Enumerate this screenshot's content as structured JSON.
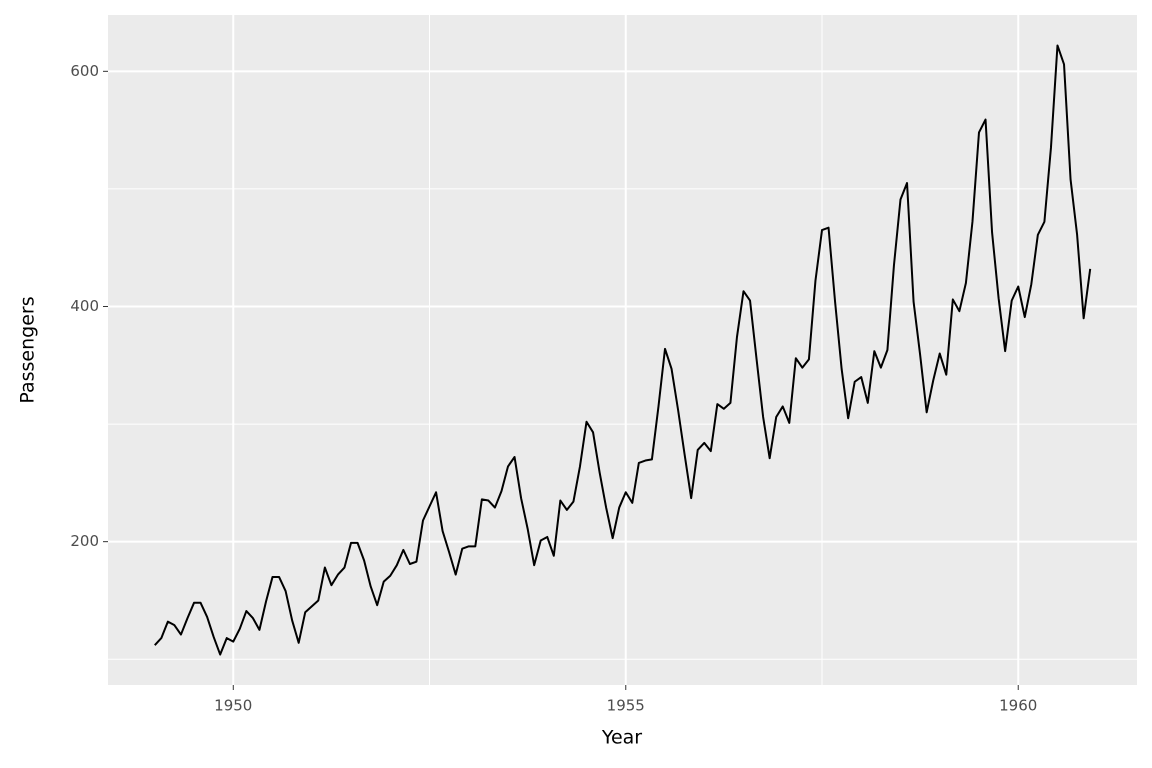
{
  "chart_data": {
    "type": "line",
    "x_label": "Year",
    "y_label": "Passengers",
    "x": [
      1949,
      1949.0833,
      1949.1667,
      1949.25,
      1949.3333,
      1949.4167,
      1949.5,
      1949.5833,
      1949.6667,
      1949.75,
      1949.8333,
      1949.9167,
      1950,
      1950.0833,
      1950.1667,
      1950.25,
      1950.3333,
      1950.4167,
      1950.5,
      1950.5833,
      1950.6667,
      1950.75,
      1950.8333,
      1950.9167,
      1951,
      1951.0833,
      1951.1667,
      1951.25,
      1951.3333,
      1951.4167,
      1951.5,
      1951.5833,
      1951.6667,
      1951.75,
      1951.8333,
      1951.9167,
      1952,
      1952.0833,
      1952.1667,
      1952.25,
      1952.3333,
      1952.4167,
      1952.5,
      1952.5833,
      1952.6667,
      1952.75,
      1952.8333,
      1952.9167,
      1953,
      1953.0833,
      1953.1667,
      1953.25,
      1953.3333,
      1953.4167,
      1953.5,
      1953.5833,
      1953.6667,
      1953.75,
      1953.8333,
      1953.9167,
      1954,
      1954.0833,
      1954.1667,
      1954.25,
      1954.3333,
      1954.4167,
      1954.5,
      1954.5833,
      1954.6667,
      1954.75,
      1954.8333,
      1954.9167,
      1955,
      1955.0833,
      1955.1667,
      1955.25,
      1955.3333,
      1955.4167,
      1955.5,
      1955.5833,
      1955.6667,
      1955.75,
      1955.8333,
      1955.9167,
      1956,
      1956.0833,
      1956.1667,
      1956.25,
      1956.3333,
      1956.4167,
      1956.5,
      1956.5833,
      1956.6667,
      1956.75,
      1956.8333,
      1956.9167,
      1957,
      1957.0833,
      1957.1667,
      1957.25,
      1957.3333,
      1957.4167,
      1957.5,
      1957.5833,
      1957.6667,
      1957.75,
      1957.8333,
      1957.9167,
      1958,
      1958.0833,
      1958.1667,
      1958.25,
      1958.3333,
      1958.4167,
      1958.5,
      1958.5833,
      1958.6667,
      1958.75,
      1958.8333,
      1958.9167,
      1959,
      1959.0833,
      1959.1667,
      1959.25,
      1959.3333,
      1959.4167,
      1959.5,
      1959.5833,
      1959.6667,
      1959.75,
      1959.8333,
      1959.9167,
      1960,
      1960.0833,
      1960.1667,
      1960.25,
      1960.3333,
      1960.4167,
      1960.5,
      1960.5833,
      1960.6667,
      1960.75,
      1960.8333,
      1960.9167
    ],
    "values": [
      112,
      118,
      132,
      129,
      121,
      135,
      148,
      148,
      136,
      119,
      104,
      118,
      115,
      126,
      141,
      135,
      125,
      149,
      170,
      170,
      158,
      133,
      114,
      140,
      145,
      150,
      178,
      163,
      172,
      178,
      199,
      199,
      184,
      162,
      146,
      166,
      171,
      180,
      193,
      181,
      183,
      218,
      230,
      242,
      209,
      191,
      172,
      194,
      196,
      196,
      236,
      235,
      229,
      243,
      264,
      272,
      237,
      211,
      180,
      201,
      204,
      188,
      235,
      227,
      234,
      264,
      302,
      293,
      259,
      229,
      203,
      229,
      242,
      233,
      267,
      269,
      270,
      315,
      364,
      347,
      312,
      274,
      237,
      278,
      284,
      277,
      317,
      313,
      318,
      374,
      413,
      405,
      355,
      306,
      271,
      306,
      315,
      301,
      356,
      348,
      355,
      422,
      465,
      467,
      404,
      347,
      305,
      336,
      340,
      318,
      362,
      348,
      363,
      435,
      491,
      505,
      404,
      359,
      310,
      337,
      360,
      342,
      406,
      396,
      420,
      472,
      548,
      559,
      463,
      407,
      362,
      405,
      417,
      391,
      419,
      461,
      472,
      535,
      622,
      606,
      508,
      461,
      390,
      432
    ],
    "color": "#000000",
    "xlim": [
      1948.404,
      1961.513
    ],
    "ylim": [
      78.1,
      647.9
    ],
    "xticks": [
      1950,
      1955,
      1960
    ],
    "yticks": [
      200,
      400,
      600
    ],
    "x_minor_grid": [
      1952.5,
      1957.5
    ],
    "y_minor_grid": [
      100,
      300,
      500
    ],
    "grid": true
  }
}
